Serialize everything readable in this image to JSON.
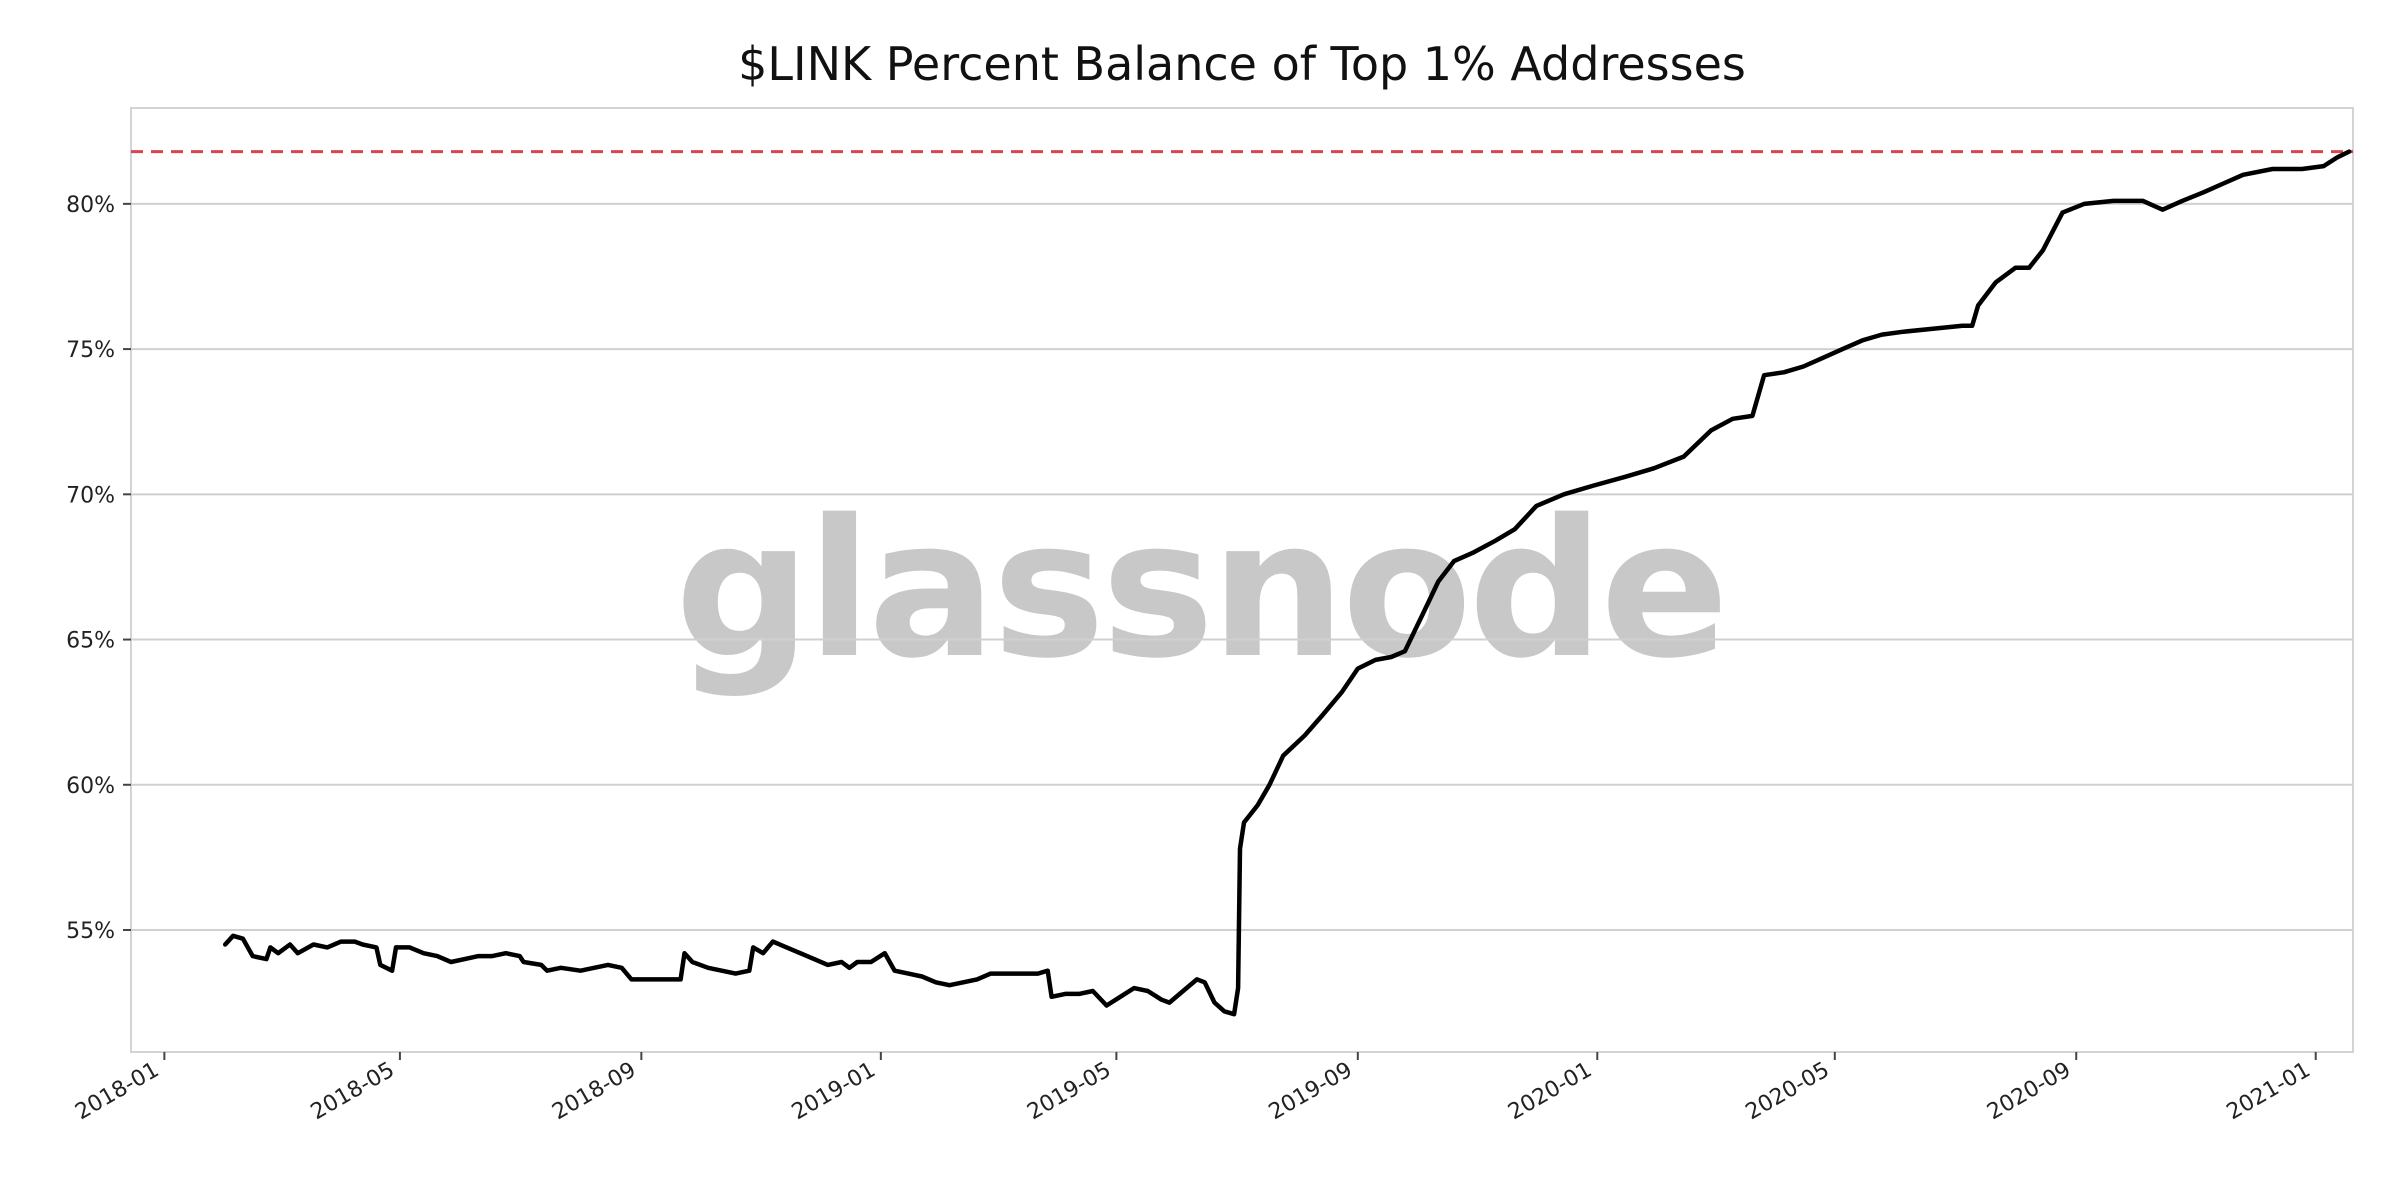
{
  "watermark": "glassnode",
  "colors": {
    "line": "#000000",
    "reference": "#d9454f",
    "grid": "#d0d0d0",
    "frame": "#d4d4d4",
    "watermark": "#c8c8c8"
  },
  "chart_data": {
    "type": "line",
    "title": "$LINK Percent Balance of Top 1% Addresses",
    "xlabel": "",
    "ylabel": "",
    "xlim": [
      "2017-12-15",
      "2021-01-20"
    ],
    "ylim": [
      50.8,
      83.3
    ],
    "grid": {
      "y": true,
      "x": false
    },
    "y_ticks": [
      {
        "value": 55,
        "label": "55%"
      },
      {
        "value": 60,
        "label": "60%"
      },
      {
        "value": 65,
        "label": "65%"
      },
      {
        "value": 70,
        "label": "70%"
      },
      {
        "value": 75,
        "label": "75%"
      },
      {
        "value": 80,
        "label": "80%"
      }
    ],
    "x_ticks": [
      {
        "value": "2018-01-01",
        "label": "2018-01"
      },
      {
        "value": "2018-05-01",
        "label": "2018-05"
      },
      {
        "value": "2018-09-01",
        "label": "2018-09"
      },
      {
        "value": "2019-01-01",
        "label": "2019-01"
      },
      {
        "value": "2019-05-01",
        "label": "2019-05"
      },
      {
        "value": "2019-09-01",
        "label": "2019-09"
      },
      {
        "value": "2020-01-01",
        "label": "2020-01"
      },
      {
        "value": "2020-05-01",
        "label": "2020-05"
      },
      {
        "value": "2020-09-01",
        "label": "2020-09"
      },
      {
        "value": "2021-01-01",
        "label": "2021-01"
      }
    ],
    "reference_line": {
      "value": 81.8,
      "style": "dashed"
    },
    "series": [
      {
        "points": [
          [
            "2018-02-01",
            54.5
          ],
          [
            "2018-02-05",
            54.8
          ],
          [
            "2018-02-10",
            54.7
          ],
          [
            "2018-02-15",
            54.1
          ],
          [
            "2018-02-22",
            54.0
          ],
          [
            "2018-02-24",
            54.4
          ],
          [
            "2018-02-28",
            54.2
          ],
          [
            "2018-03-06",
            54.5
          ],
          [
            "2018-03-10",
            54.2
          ],
          [
            "2018-03-18",
            54.5
          ],
          [
            "2018-03-25",
            54.4
          ],
          [
            "2018-04-01",
            54.6
          ],
          [
            "2018-04-08",
            54.6
          ],
          [
            "2018-04-12",
            54.5
          ],
          [
            "2018-04-19",
            54.4
          ],
          [
            "2018-04-21",
            53.8
          ],
          [
            "2018-04-27",
            53.6
          ],
          [
            "2018-04-29",
            54.4
          ],
          [
            "2018-05-06",
            54.4
          ],
          [
            "2018-05-13",
            54.2
          ],
          [
            "2018-05-20",
            54.1
          ],
          [
            "2018-05-27",
            53.9
          ],
          [
            "2018-06-03",
            54.0
          ],
          [
            "2018-06-10",
            54.1
          ],
          [
            "2018-06-17",
            54.1
          ],
          [
            "2018-06-24",
            54.2
          ],
          [
            "2018-07-01",
            54.1
          ],
          [
            "2018-07-03",
            53.9
          ],
          [
            "2018-07-12",
            53.8
          ],
          [
            "2018-07-15",
            53.6
          ],
          [
            "2018-07-22",
            53.7
          ],
          [
            "2018-08-01",
            53.6
          ],
          [
            "2018-08-08",
            53.7
          ],
          [
            "2018-08-15",
            53.8
          ],
          [
            "2018-08-22",
            53.7
          ],
          [
            "2018-08-27",
            53.3
          ],
          [
            "2018-09-01",
            53.3
          ],
          [
            "2018-09-08",
            53.3
          ],
          [
            "2018-09-14",
            53.3
          ],
          [
            "2018-09-21",
            53.3
          ],
          [
            "2018-09-23",
            54.2
          ],
          [
            "2018-09-27",
            53.9
          ],
          [
            "2018-10-05",
            53.7
          ],
          [
            "2018-10-12",
            53.6
          ],
          [
            "2018-10-19",
            53.5
          ],
          [
            "2018-10-26",
            53.6
          ],
          [
            "2018-10-28",
            54.4
          ],
          [
            "2018-11-02",
            54.2
          ],
          [
            "2018-11-07",
            54.6
          ],
          [
            "2018-11-14",
            54.4
          ],
          [
            "2018-11-21",
            54.2
          ],
          [
            "2018-11-28",
            54.0
          ],
          [
            "2018-12-05",
            53.8
          ],
          [
            "2018-12-12",
            53.9
          ],
          [
            "2018-12-16",
            53.7
          ],
          [
            "2018-12-20",
            53.9
          ],
          [
            "2018-12-27",
            53.9
          ],
          [
            "2019-01-03",
            54.2
          ],
          [
            "2019-01-08",
            53.6
          ],
          [
            "2019-01-15",
            53.5
          ],
          [
            "2019-01-22",
            53.4
          ],
          [
            "2019-01-29",
            53.2
          ],
          [
            "2019-02-05",
            53.1
          ],
          [
            "2019-02-12",
            53.2
          ],
          [
            "2019-02-19",
            53.3
          ],
          [
            "2019-02-26",
            53.5
          ],
          [
            "2019-03-08",
            53.5
          ],
          [
            "2019-03-15",
            53.5
          ],
          [
            "2019-03-22",
            53.5
          ],
          [
            "2019-03-27",
            53.6
          ],
          [
            "2019-03-29",
            52.7
          ],
          [
            "2019-04-05",
            52.8
          ],
          [
            "2019-04-12",
            52.8
          ],
          [
            "2019-04-19",
            52.9
          ],
          [
            "2019-04-26",
            52.4
          ],
          [
            "2019-05-03",
            52.7
          ],
          [
            "2019-05-10",
            53.0
          ],
          [
            "2019-05-17",
            52.9
          ],
          [
            "2019-05-24",
            52.6
          ],
          [
            "2019-05-28",
            52.5
          ],
          [
            "2019-06-04",
            52.9
          ],
          [
            "2019-06-11",
            53.3
          ],
          [
            "2019-06-15",
            53.2
          ],
          [
            "2019-06-20",
            52.5
          ],
          [
            "2019-06-25",
            52.2
          ],
          [
            "2019-06-30",
            52.1
          ],
          [
            "2019-07-02",
            53.0
          ],
          [
            "2019-07-03",
            57.8
          ],
          [
            "2019-07-05",
            58.7
          ],
          [
            "2019-07-12",
            59.3
          ],
          [
            "2019-07-18",
            60.0
          ],
          [
            "2019-07-25",
            61.0
          ],
          [
            "2019-08-05",
            61.7
          ],
          [
            "2019-08-14",
            62.4
          ],
          [
            "2019-08-24",
            63.2
          ],
          [
            "2019-09-01",
            64.0
          ],
          [
            "2019-09-10",
            64.3
          ],
          [
            "2019-09-18",
            64.4
          ],
          [
            "2019-09-25",
            64.6
          ],
          [
            "2019-09-30",
            65.3
          ],
          [
            "2019-10-05",
            66.0
          ],
          [
            "2019-10-12",
            67.0
          ],
          [
            "2019-10-20",
            67.7
          ],
          [
            "2019-10-30",
            68.0
          ],
          [
            "2019-11-10",
            68.4
          ],
          [
            "2019-11-20",
            68.8
          ],
          [
            "2019-12-01",
            69.6
          ],
          [
            "2019-12-15",
            70.0
          ],
          [
            "2019-12-30",
            70.3
          ],
          [
            "2020-01-15",
            70.6
          ],
          [
            "2020-01-30",
            70.9
          ],
          [
            "2020-02-14",
            71.3
          ],
          [
            "2020-02-28",
            72.2
          ],
          [
            "2020-03-10",
            72.6
          ],
          [
            "2020-03-20",
            72.7
          ],
          [
            "2020-03-26",
            74.1
          ],
          [
            "2020-04-05",
            74.2
          ],
          [
            "2020-04-15",
            74.4
          ],
          [
            "2020-04-25",
            74.7
          ],
          [
            "2020-05-05",
            75.0
          ],
          [
            "2020-05-15",
            75.3
          ],
          [
            "2020-05-25",
            75.5
          ],
          [
            "2020-06-05",
            75.6
          ],
          [
            "2020-06-20",
            75.7
          ],
          [
            "2020-07-05",
            75.8
          ],
          [
            "2020-07-10",
            75.8
          ],
          [
            "2020-07-13",
            76.5
          ],
          [
            "2020-07-22",
            77.3
          ],
          [
            "2020-08-01",
            77.8
          ],
          [
            "2020-08-08",
            77.8
          ],
          [
            "2020-08-15",
            78.4
          ],
          [
            "2020-08-25",
            79.7
          ],
          [
            "2020-09-05",
            80.0
          ],
          [
            "2020-09-20",
            80.1
          ],
          [
            "2020-10-05",
            80.1
          ],
          [
            "2020-10-15",
            79.8
          ],
          [
            "2020-10-25",
            80.1
          ],
          [
            "2020-11-05",
            80.4
          ],
          [
            "2020-11-15",
            80.7
          ],
          [
            "2020-11-25",
            81.0
          ],
          [
            "2020-12-10",
            81.2
          ],
          [
            "2020-12-25",
            81.2
          ],
          [
            "2021-01-05",
            81.3
          ],
          [
            "2021-01-12",
            81.6
          ],
          [
            "2021-01-18",
            81.8
          ]
        ]
      }
    ]
  }
}
